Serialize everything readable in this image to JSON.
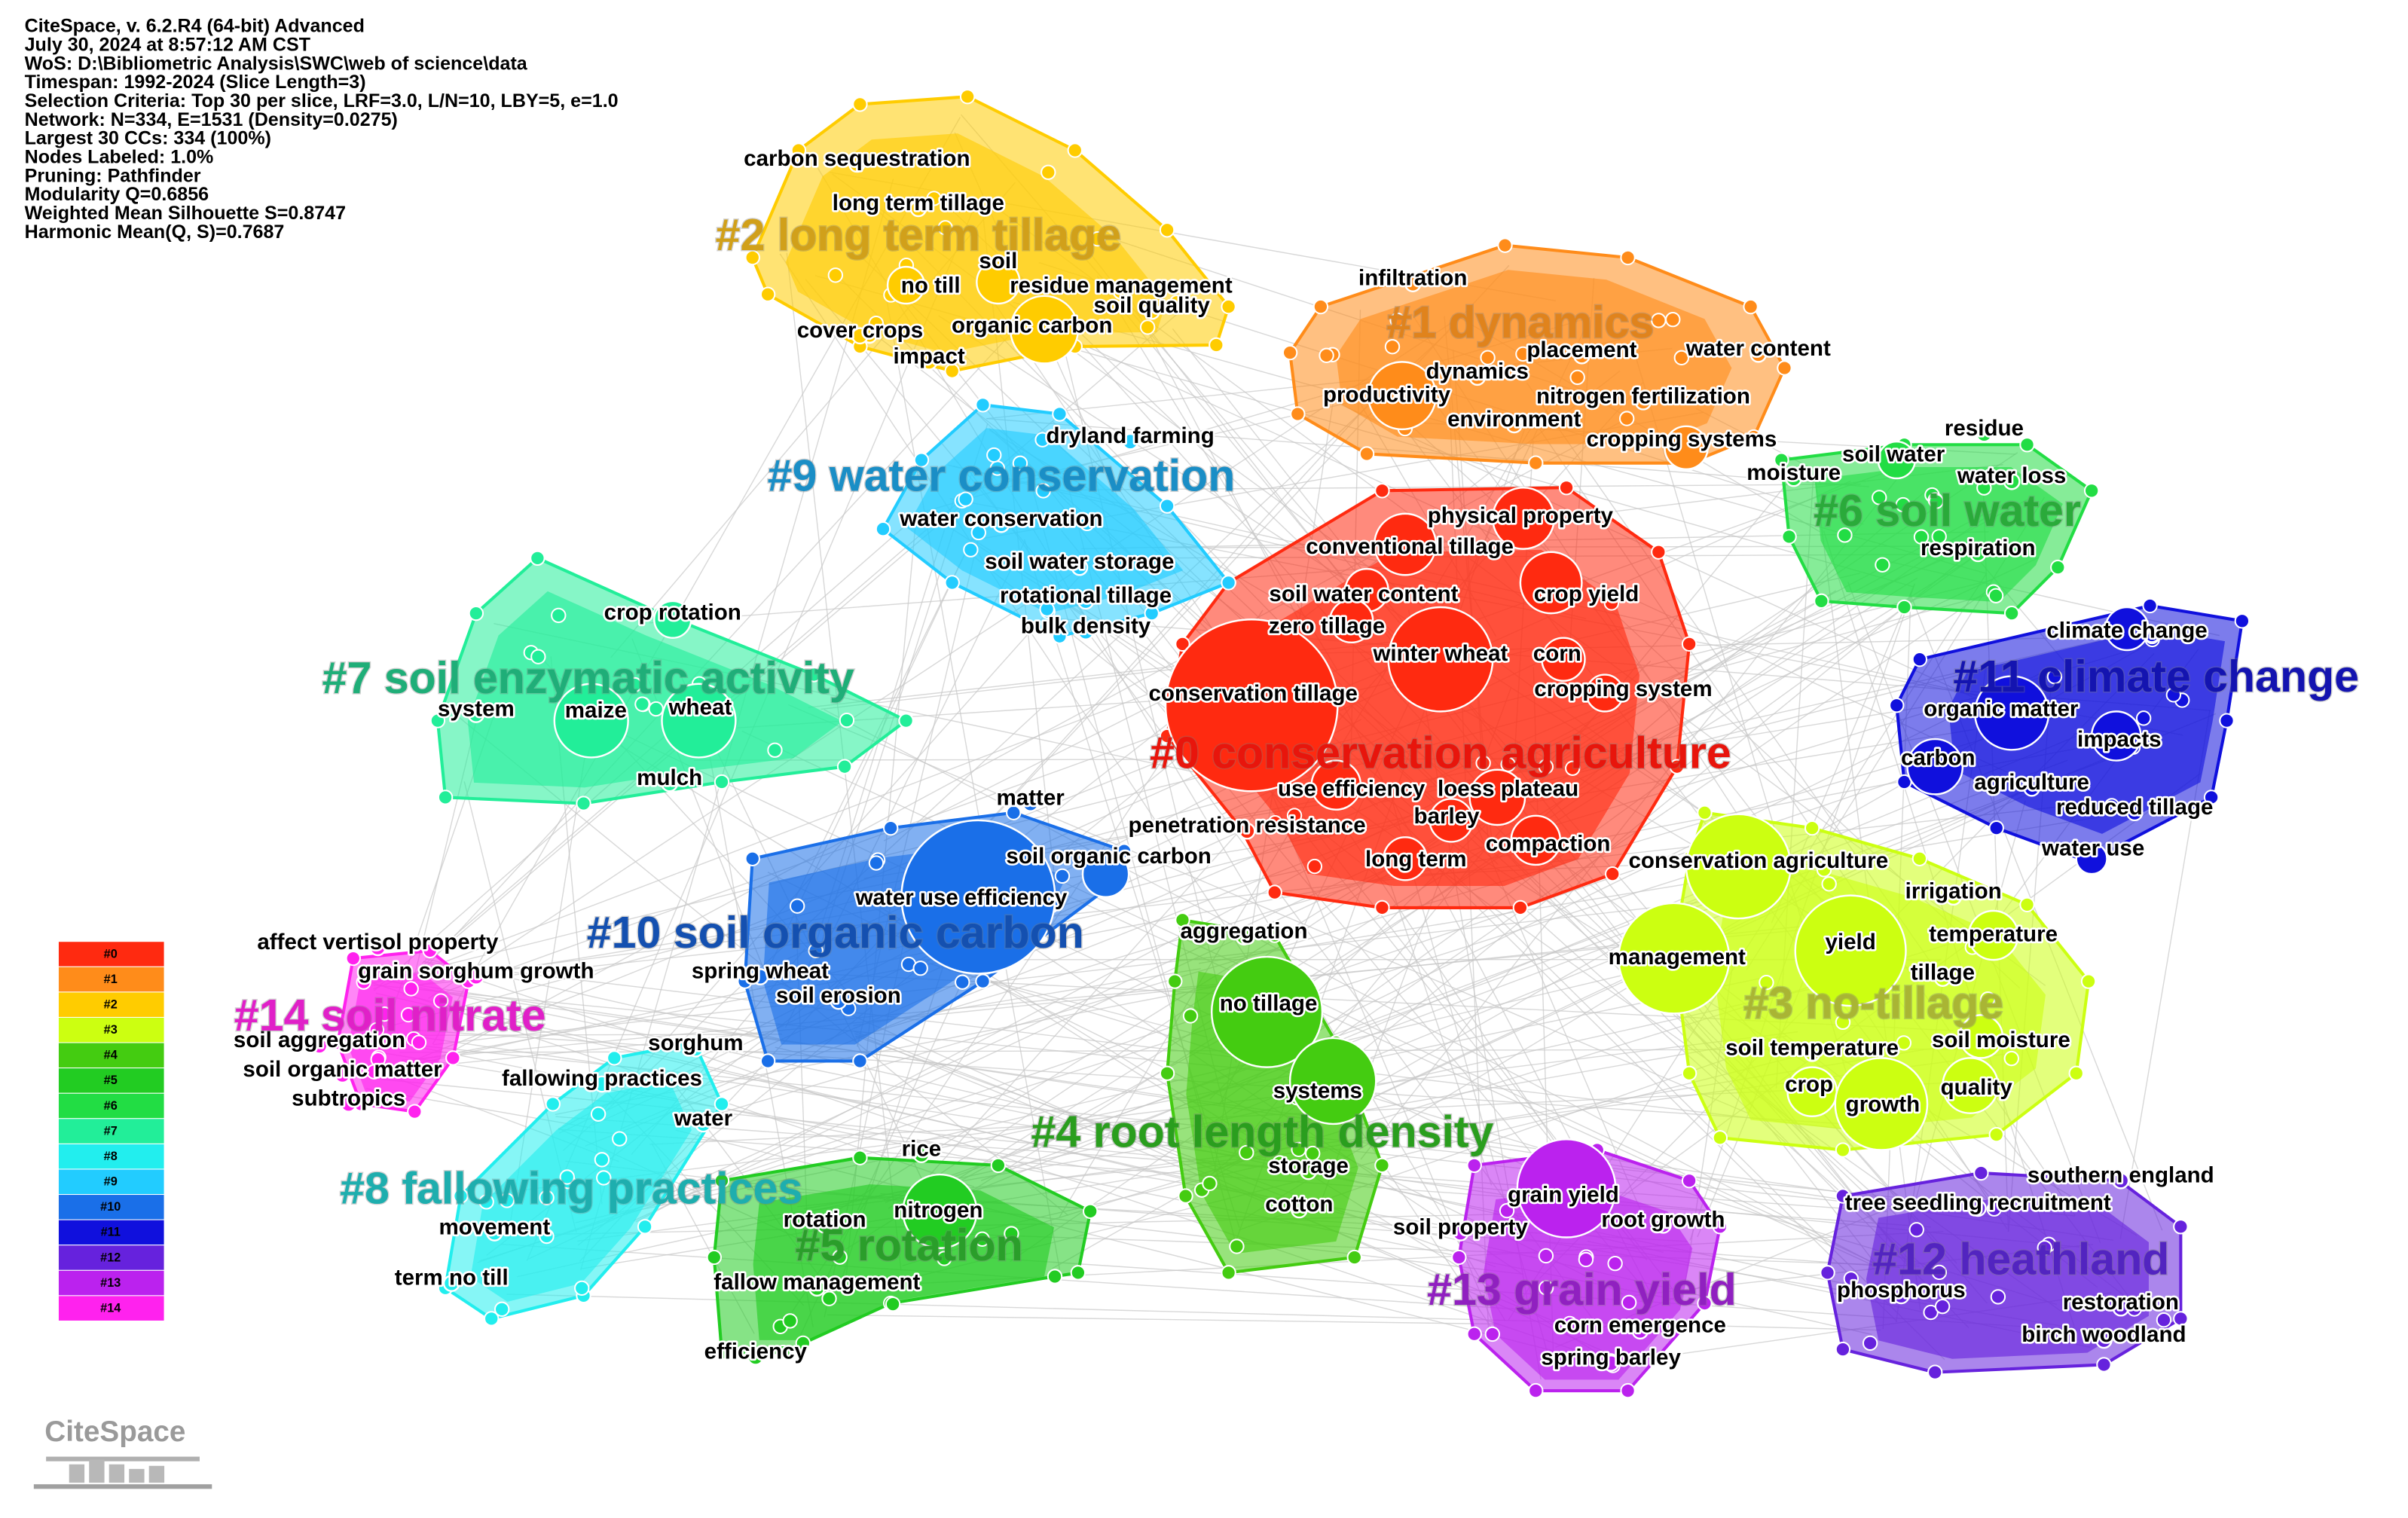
{
  "info": [
    "CiteSpace, v. 6.2.R4 (64-bit) Advanced",
    "July 30, 2024 at 8:57:12 AM CST",
    "WoS: D:\\Bibliometric Analysis\\SWC\\web of science\\data",
    "Timespan: 1992-2024 (Slice Length=3)",
    "Selection Criteria: Top 30 per slice, LRF=3.0, L/N=10, LBY=5, e=1.0",
    "Network: N=334, E=1531 (Density=0.0275)",
    "Largest 30 CCs: 334 (100%)",
    "Nodes Labeled: 1.0%",
    "Pruning: Pathfinder",
    "Modularity Q=0.6856",
    "Weighted Mean Silhouette S=0.8747",
    "Harmonic Mean(Q, S)=0.7687"
  ],
  "clusters": [
    {
      "label": "#0 conservation agriculture",
      "color": "#e8150c",
      "hull": "#ff2a10"
    },
    {
      "label": "#1 dynamics",
      "color": "#e0831c",
      "hull": "#ff8c1a"
    },
    {
      "label": "#2 long term tillage",
      "color": "#d1a01a",
      "hull": "#ffcc00"
    },
    {
      "label": "#3 no-tillage",
      "color": "#a9b534",
      "hull": "#ccff11"
    },
    {
      "label": "#4 root length density",
      "color": "#2a9e1e",
      "hull": "#44cc11"
    },
    {
      "label": "#5 rotation",
      "color": "#2a9e2a",
      "hull": "#22cc22"
    },
    {
      "label": "#6 soil water",
      "color": "#2aaa3a",
      "hull": "#22dd44"
    },
    {
      "label": "#7 soil enzymatic activity",
      "color": "#1fae78",
      "hull": "#22ee99"
    },
    {
      "label": "#8 fallowing practices",
      "color": "#1eaeae",
      "hull": "#22eeee"
    },
    {
      "label": "#9 water conservation",
      "color": "#1a8ec6",
      "hull": "#22ccff"
    },
    {
      "label": "#10 soil organic carbon",
      "color": "#1450b0",
      "hull": "#1a6fe8"
    },
    {
      "label": "#11 climate change",
      "color": "#1414b0",
      "hull": "#1010dd"
    },
    {
      "label": "#12 heathland",
      "color": "#5224c0",
      "hull": "#6622dd"
    },
    {
      "label": "#13 grain yield",
      "color": "#9020c0",
      "hull": "#bb22ee"
    },
    {
      "label": "#14 soil nitrate",
      "color": "#e020c8",
      "hull": "#ff22ee"
    }
  ],
  "keywords": [
    "carbon sequestration",
    "long term tillage",
    "soil",
    "no till",
    "residue management",
    "soil quality",
    "cover crops",
    "organic carbon",
    "impact",
    "infiltration",
    "placement",
    "water content",
    "dynamics",
    "productivity",
    "nitrogen fertilization",
    "environment",
    "cropping systems",
    "dryland farming",
    "water conservation",
    "soil water storage",
    "rotational tillage",
    "bulk density",
    "residue",
    "soil water",
    "moisture",
    "water loss",
    "respiration",
    "physical property",
    "conventional tillage",
    "soil water content",
    "crop yield",
    "zero tillage",
    "winter wheat",
    "corn",
    "conservation tillage",
    "cropping system",
    "climate change",
    "organic matter",
    "impacts",
    "carbon",
    "agriculture",
    "reduced tillage",
    "water use",
    "crop rotation",
    "system",
    "maize",
    "wheat",
    "mulch",
    "matter",
    "use efficiency",
    "loess plateau",
    "barley",
    "penetration resistance",
    "compaction",
    "long term",
    "soil organic carbon",
    "conservation agriculture",
    "water use efficiency",
    "irrigation",
    "aggregation",
    "temperature",
    "yield",
    "management",
    "tillage",
    "affect vertisol property",
    "grain sorghum growth",
    "spring wheat",
    "soil erosion",
    "no tillage",
    "soil aggregation",
    "sorghum",
    "soil temperature",
    "soil moisture",
    "soil organic matter",
    "fallowing practices",
    "crop",
    "quality",
    "systems",
    "subtropics",
    "growth",
    "water",
    "rice",
    "storage",
    "southern england",
    "grain yield",
    "tree seedling recruitment",
    "cotton",
    "rotation",
    "nitrogen",
    "root growth",
    "soil property",
    "movement",
    "term no till",
    "fallow management",
    "phosphorus",
    "restoration",
    "corn emergence",
    "birch woodland",
    "spring barley",
    "efficiency"
  ],
  "legend": [
    "#0",
    "#1",
    "#2",
    "#3",
    "#4",
    "#5",
    "#6",
    "#7",
    "#8",
    "#9",
    "#10",
    "#11",
    "#12",
    "#13",
    "#14"
  ],
  "logo": "CiteSpace"
}
